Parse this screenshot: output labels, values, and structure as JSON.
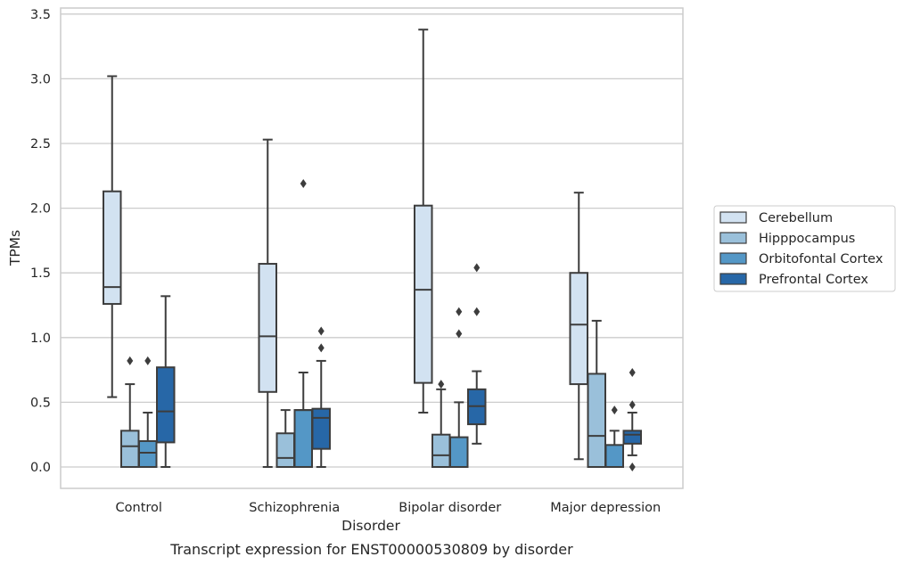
{
  "chart_data": {
    "type": "box",
    "xlabel": "Disorder",
    "ylabel": "TPMs",
    "caption": "Transcript expression for ENST00000530809 by disorder",
    "ylim": [
      -0.17,
      3.56
    ],
    "yticks": [
      "0.0",
      "0.5",
      "1.0",
      "1.5",
      "2.0",
      "2.5",
      "3.0",
      "3.5"
    ],
    "grid": true,
    "legend_position": "right",
    "categories": [
      "Control",
      "Schizophrenia",
      "Bipolar disorder",
      "Major depression"
    ],
    "series": [
      {
        "name": "Cerebellum",
        "color": "#d2e2f1",
        "boxes": [
          {
            "whislo": 0.54,
            "q1": 1.26,
            "med": 1.39,
            "q3": 2.13,
            "whishi": 3.02,
            "fliers": []
          },
          {
            "whislo": 0.0,
            "q1": 0.58,
            "med": 1.01,
            "q3": 1.57,
            "whishi": 2.53,
            "fliers": []
          },
          {
            "whislo": 0.42,
            "q1": 0.65,
            "med": 1.37,
            "q3": 2.02,
            "whishi": 3.38,
            "fliers": []
          },
          {
            "whislo": 0.06,
            "q1": 0.64,
            "med": 1.1,
            "q3": 1.5,
            "whishi": 2.12,
            "fliers": []
          }
        ]
      },
      {
        "name": "Hipppocampus",
        "color": "#9ac0da",
        "boxes": [
          {
            "whislo": 0.0,
            "q1": 0.0,
            "med": 0.16,
            "q3": 0.28,
            "whishi": 0.64,
            "fliers": [
              0.82
            ]
          },
          {
            "whislo": 0.0,
            "q1": 0.0,
            "med": 0.07,
            "q3": 0.26,
            "whishi": 0.44,
            "fliers": []
          },
          {
            "whislo": 0.0,
            "q1": 0.0,
            "med": 0.09,
            "q3": 0.25,
            "whishi": 0.6,
            "fliers": [
              0.64
            ]
          },
          {
            "whislo": 0.0,
            "q1": 0.0,
            "med": 0.24,
            "q3": 0.72,
            "whishi": 1.13,
            "fliers": []
          }
        ]
      },
      {
        "name": "Orbitofontal Cortex",
        "color": "#5497c6",
        "boxes": [
          {
            "whislo": 0.0,
            "q1": 0.0,
            "med": 0.11,
            "q3": 0.2,
            "whishi": 0.42,
            "fliers": [
              0.82
            ]
          },
          {
            "whislo": 0.0,
            "q1": 0.0,
            "med": 0.44,
            "q3": 0.44,
            "whishi": 0.73,
            "fliers": [
              2.19
            ]
          },
          {
            "whislo": 0.0,
            "q1": 0.0,
            "med": 0.0,
            "q3": 0.23,
            "whishi": 0.5,
            "fliers": [
              1.03,
              1.2
            ]
          },
          {
            "whislo": 0.0,
            "q1": 0.0,
            "med": 0.0,
            "q3": 0.17,
            "whishi": 0.28,
            "fliers": [
              0.44
            ]
          }
        ]
      },
      {
        "name": "Prefrontal Cortex",
        "color": "#2767a7",
        "boxes": [
          {
            "whislo": 0.0,
            "q1": 0.19,
            "med": 0.43,
            "q3": 0.77,
            "whishi": 1.32,
            "fliers": []
          },
          {
            "whislo": 0.0,
            "q1": 0.14,
            "med": 0.38,
            "q3": 0.45,
            "whishi": 0.82,
            "fliers": [
              0.92,
              1.05
            ]
          },
          {
            "whislo": 0.18,
            "q1": 0.33,
            "med": 0.47,
            "q3": 0.6,
            "whishi": 0.74,
            "fliers": [
              1.2,
              1.54
            ]
          },
          {
            "whislo": 0.09,
            "q1": 0.18,
            "med": 0.25,
            "q3": 0.28,
            "whishi": 0.42,
            "fliers": [
              0.0,
              0.48,
              0.73
            ]
          }
        ]
      }
    ]
  }
}
